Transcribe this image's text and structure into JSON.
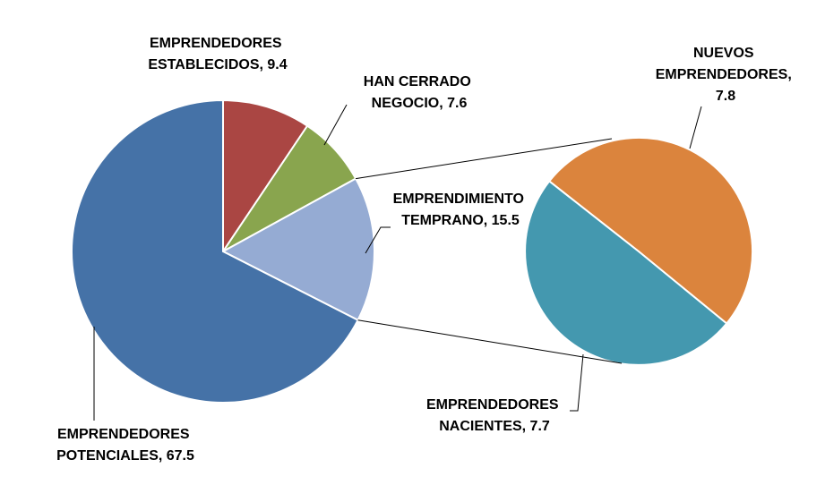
{
  "chart_data": {
    "type": "pie",
    "subtype": "pie-of-pie",
    "main_slices": [
      {
        "name": "EMPRENDEDORES POTENCIALES",
        "value": 67.5,
        "color": "#4572A7"
      },
      {
        "name": "EMPRENDEDORES ESTABLECIDOS",
        "value": 9.4,
        "color": "#AA4643"
      },
      {
        "name": "HAN CERRADO NEGOCIO",
        "value": 7.6,
        "color": "#89A54E"
      },
      {
        "name": "EMPRENDIMIENTO TEMPRANO",
        "value": 15.5,
        "color": "#95ABD3"
      }
    ],
    "secondary_slices": [
      {
        "name": "NUEVOS EMPRENDEDORES",
        "value": 7.8,
        "color": "#DB843D"
      },
      {
        "name": "EMPRENDEDORES NACIENTES",
        "value": 7.7,
        "color": "#4498AF"
      }
    ],
    "labels": {
      "potenciales": [
        "EMPRENDEDORES",
        "POTENCIALES, 67.5"
      ],
      "establecidos": [
        "EMPRENDEDORES",
        "ESTABLECIDOS, 9.4"
      ],
      "cerrado": [
        "HAN CERRADO",
        "NEGOCIO, 7.6"
      ],
      "temprano": [
        "EMPRENDIMIENTO",
        "TEMPRANO, 15.5"
      ],
      "nuevos": [
        "NUEVOS",
        "EMPRENDEDORES,",
        "7.8"
      ],
      "nacientes": [
        "EMPRENDEDORES",
        "NACIENTES, 7.7"
      ]
    }
  }
}
